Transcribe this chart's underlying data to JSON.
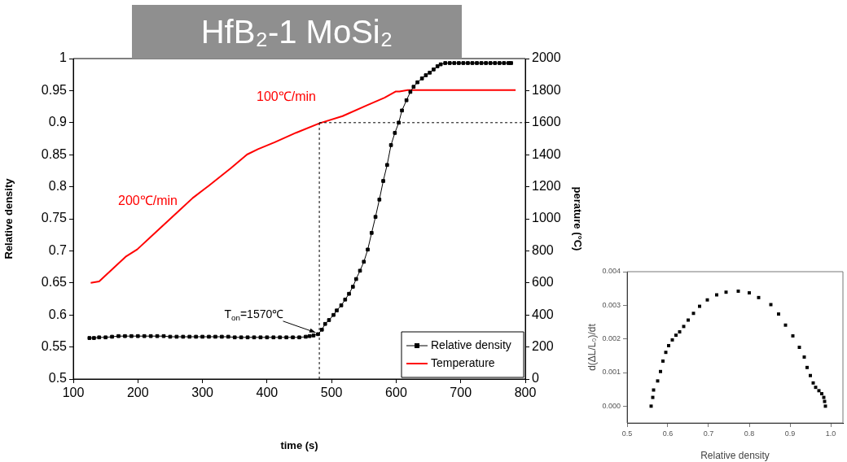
{
  "chart_data": [
    {
      "type": "line",
      "title": "HfB₂-1 MoSi₂",
      "xlabel": "time (s)",
      "ylabel": "Relative density",
      "y2label": "perature (°C)",
      "xlim": [
        100,
        800
      ],
      "xticks": [
        100,
        200,
        300,
        400,
        500,
        600,
        700,
        800
      ],
      "ylim": [
        0.5,
        1
      ],
      "yticks": [
        0.5,
        0.55,
        0.6,
        0.65,
        0.7,
        0.75,
        0.8,
        0.85,
        0.9,
        0.95,
        1
      ],
      "y2lim": [
        0,
        2000
      ],
      "y2ticks": [
        0,
        200,
        400,
        600,
        800,
        1000,
        1200,
        1400,
        1600,
        1800,
        2000
      ],
      "legend": "bottom right",
      "series": [
        {
          "name": "Relative density",
          "color": "#000000",
          "marker": "square",
          "x": [
            125,
            132,
            140,
            150,
            160,
            170,
            180,
            190,
            200,
            210,
            220,
            230,
            240,
            250,
            260,
            270,
            280,
            290,
            300,
            310,
            320,
            330,
            340,
            350,
            360,
            370,
            380,
            390,
            400,
            410,
            420,
            430,
            440,
            450,
            460,
            466,
            472,
            479,
            485,
            490,
            496,
            503,
            508,
            515,
            521,
            527,
            533,
            538,
            544,
            550,
            556,
            562,
            568,
            574,
            580,
            586,
            592,
            598,
            604,
            609,
            616,
            622,
            627,
            633,
            640,
            646,
            652,
            658,
            664,
            669,
            676,
            683,
            690,
            697,
            704,
            711,
            718,
            725,
            732,
            739,
            746,
            753,
            760,
            767,
            774,
            778
          ],
          "values": [
            0.564,
            0.564,
            0.565,
            0.565,
            0.566,
            0.567,
            0.567,
            0.567,
            0.567,
            0.567,
            0.567,
            0.567,
            0.567,
            0.566,
            0.566,
            0.566,
            0.566,
            0.566,
            0.566,
            0.566,
            0.566,
            0.566,
            0.566,
            0.565,
            0.565,
            0.565,
            0.565,
            0.565,
            0.565,
            0.565,
            0.565,
            0.565,
            0.565,
            0.565,
            0.566,
            0.567,
            0.568,
            0.57,
            0.577,
            0.586,
            0.592,
            0.6,
            0.607,
            0.615,
            0.624,
            0.633,
            0.644,
            0.656,
            0.669,
            0.683,
            0.702,
            0.728,
            0.753,
            0.78,
            0.809,
            0.834,
            0.865,
            0.884,
            0.9,
            0.919,
            0.935,
            0.948,
            0.956,
            0.963,
            0.969,
            0.974,
            0.978,
            0.983,
            0.988,
            0.991,
            0.993,
            0.993,
            0.993,
            0.993,
            0.993,
            0.993,
            0.993,
            0.993,
            0.993,
            0.993,
            0.993,
            0.993,
            0.993,
            0.993,
            0.993,
            0.993
          ]
        },
        {
          "name": "Temperature",
          "color": "#ff0000",
          "axis": "y2",
          "marker": "none",
          "x": [
            127,
            140,
            182,
            199,
            226,
            258,
            285,
            310,
            344,
            369,
            386,
            412,
            445,
            481,
            517,
            555,
            582,
            599,
            605,
            618,
            785
          ],
          "values": [
            600,
            609,
            766,
            809,
            910,
            1029,
            1130,
            1207,
            1316,
            1401,
            1435,
            1478,
            1537,
            1596,
            1641,
            1709,
            1756,
            1794,
            1794,
            1803,
            1803
          ]
        }
      ],
      "ref_lines": [
        {
          "axis": "x",
          "value": 481,
          "line_style": "dashed"
        },
        {
          "axis": "y2",
          "value": 1600,
          "line_style": "dashed"
        }
      ],
      "annotations": [
        "200℃/min",
        "100℃/min",
        {
          "text": "T$_{on}$=1570℃",
          "x": 479,
          "y": 0.57
        }
      ]
    },
    {
      "type": "scatter",
      "xlabel": "Relative density",
      "ylabel": "d(ΔL/L₀)/dt",
      "xlim": [
        0.5,
        1.03
      ],
      "xticks": [
        0.5,
        0.6,
        0.7,
        0.8,
        0.9,
        {
          "value": 1,
          "label": "1.0"
        }
      ],
      "ylim": [
        -0.0005,
        0.004
      ],
      "yticks": [
        {
          "value": 0,
          "label": "0.000"
        },
        {
          "value": 0.001,
          "label": "0.001"
        },
        {
          "value": 0.002,
          "label": "0.002"
        },
        {
          "value": 0.003,
          "label": "0.003"
        },
        {
          "value": 0.004,
          "label": "0.004"
        }
      ],
      "series": [
        {
          "color": "#000000",
          "marker": "square",
          "x": [
            0.559,
            0.563,
            0.565,
            0.575,
            0.582,
            0.588,
            0.595,
            0.602,
            0.611,
            0.62,
            0.629,
            0.639,
            0.65,
            0.663,
            0.678,
            0.697,
            0.72,
            0.743,
            0.773,
            0.8,
            0.823,
            0.853,
            0.872,
            0.889,
            0.907,
            0.923,
            0.935,
            0.942,
            0.95,
            0.957,
            0.963,
            0.971,
            0.978,
            0.983,
            0.985,
            0.987
          ],
          "values": [
            0,
            0.00026,
            0.00048,
            0.00075,
            0.00103,
            0.00134,
            0.0016,
            0.0018,
            0.00197,
            0.00211,
            0.00221,
            0.00237,
            0.00256,
            0.00276,
            0.00297,
            0.00316,
            0.00331,
            0.00339,
            0.00342,
            0.00337,
            0.00323,
            0.00302,
            0.00274,
            0.00241,
            0.00209,
            0.00175,
            0.00146,
            0.00115,
            0.00091,
            0.00069,
            0.00056,
            0.00046,
            0.00037,
            0.00026,
            0.00014,
            0
          ]
        }
      ]
    }
  ]
}
